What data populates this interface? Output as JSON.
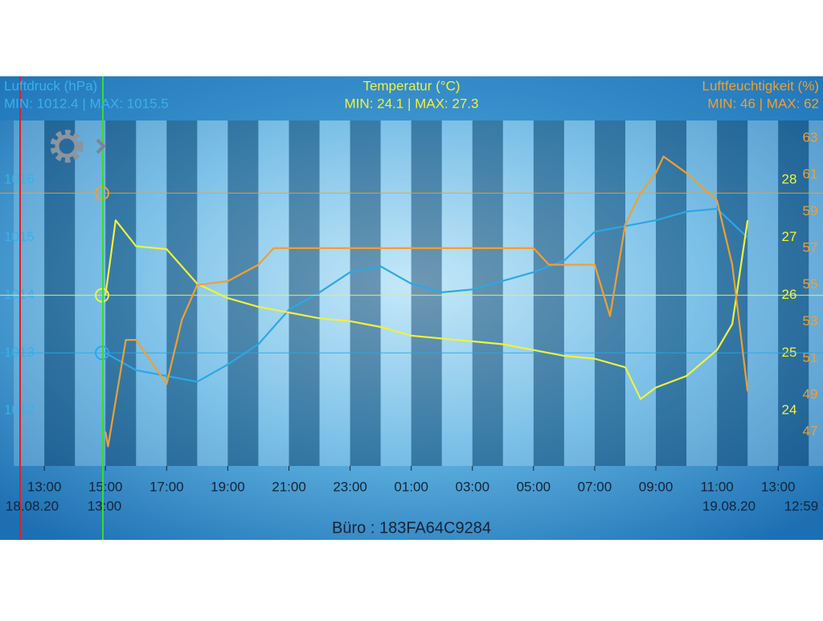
{
  "chart_data": {
    "type": "line",
    "y_label": "Luftdruck (hPa)",
    "y_stats": "MIN: 1012.4 | MAX: 1015.5",
    "y2_label": "Temperatur (°C)",
    "y2_stats": "MIN: 24.1 | MAX: 27.3",
    "y3_label": "Luftfeuchtigkeit (%)",
    "y3_stats": "MIN: 46 | MAX: 62",
    "footer": "Büro : 183FA64C9284",
    "start_date_label": "18.08.20",
    "cursor_time_label": "13:00",
    "end_date_label": "19.08.20",
    "end_time_label": "12:59",
    "xlim": [
      "18.08.20 11:33",
      "19.08.20 14:28"
    ],
    "xticks": [
      {
        "value": "18.08.20 13:00",
        "label": "13:00"
      },
      {
        "value": "18.08.20 15:00",
        "label": "15:00"
      },
      {
        "value": "18.08.20 17:00",
        "label": "17:00"
      },
      {
        "value": "18.08.20 19:00",
        "label": "19:00"
      },
      {
        "value": "18.08.20 21:00",
        "label": "21:00"
      },
      {
        "value": "18.08.20 23:00",
        "label": "23:00"
      },
      {
        "value": "19.08.20 01:00",
        "label": "01:00"
      },
      {
        "value": "19.08.20 03:00",
        "label": "03:00"
      },
      {
        "value": "19.08.20 05:00",
        "label": "05:00"
      },
      {
        "value": "19.08.20 07:00",
        "label": "07:00"
      },
      {
        "value": "19.08.20 09:00",
        "label": "09:00"
      },
      {
        "value": "19.08.20 11:00",
        "label": "11:00"
      },
      {
        "value": "19.08.20 13:00",
        "label": "13:00"
      }
    ],
    "ylim": [
      1011.04,
      1017.03
    ],
    "yticks": [
      1012,
      1013,
      1014,
      1015,
      1016
    ],
    "y2lim": [
      23.04,
      29.03
    ],
    "y2ticks": [
      24,
      25,
      26,
      27,
      28
    ],
    "y3lim": [
      45.13,
      63.96
    ],
    "y3ticks": [
      47,
      49,
      51,
      53,
      55,
      57,
      59,
      61,
      63
    ],
    "series": [
      {
        "name": "Luftdruck (hPa)",
        "axis": "y",
        "color": "#2aa8e6",
        "cursor": 1013,
        "x": [
          "18.08.20 15:00",
          "18.08.20 16:00",
          "18.08.20 17:00",
          "18.08.20 18:00",
          "18.08.20 19:00",
          "18.08.20 20:00",
          "18.08.20 21:00",
          "18.08.20 22:00",
          "18.08.20 23:00",
          "19.08.20 00:00",
          "19.08.20 01:00",
          "19.08.20 02:00",
          "19.08.20 03:00",
          "19.08.20 04:00",
          "19.08.20 05:00",
          "19.08.20 06:00",
          "19.08.20 07:00",
          "19.08.20 08:00",
          "19.08.20 09:00",
          "19.08.20 10:00",
          "19.08.20 11:00",
          "19.08.20 12:00"
        ],
        "values": [
          1013.0,
          1012.7,
          1012.6,
          1012.5,
          1012.8,
          1013.15,
          1013.75,
          1014.05,
          1014.4,
          1014.5,
          1014.2,
          1014.05,
          1014.1,
          1014.25,
          1014.4,
          1014.6,
          1015.1,
          1015.2,
          1015.3,
          1015.45,
          1015.5,
          1015.0
        ]
      },
      {
        "name": "Temperatur (°C)",
        "axis": "y2",
        "color": "#f0f23a",
        "cursor": 26,
        "x": [
          "18.08.20 15:00",
          "18.08.20 15:20",
          "18.08.20 16:00",
          "18.08.20 17:00",
          "18.08.20 18:00",
          "18.08.20 19:00",
          "18.08.20 20:00",
          "18.08.20 21:00",
          "18.08.20 22:00",
          "18.08.20 23:00",
          "19.08.20 00:00",
          "19.08.20 01:00",
          "19.08.20 02:00",
          "19.08.20 03:00",
          "19.08.20 04:00",
          "19.08.20 05:00",
          "19.08.20 06:00",
          "19.08.20 07:00",
          "19.08.20 08:00",
          "19.08.20 08:30",
          "19.08.20 09:00",
          "19.08.20 10:00",
          "19.08.20 11:00",
          "19.08.20 11:30",
          "19.08.20 12:00"
        ],
        "values": [
          26.0,
          27.3,
          26.85,
          26.8,
          26.2,
          25.95,
          25.8,
          25.7,
          25.6,
          25.55,
          25.45,
          25.3,
          25.25,
          25.2,
          25.15,
          25.05,
          24.95,
          24.9,
          24.75,
          24.2,
          24.4,
          24.6,
          25.05,
          25.5,
          27.3
        ]
      },
      {
        "name": "Luftfeuchtigkeit (%)",
        "axis": "y3",
        "color": "#f0a030",
        "cursor": 60,
        "x": [
          "18.08.20 15:00",
          "18.08.20 15:05",
          "18.08.20 15:40",
          "18.08.20 16:00",
          "18.08.20 17:00",
          "18.08.20 17:30",
          "18.08.20 18:00",
          "18.08.20 19:00",
          "18.08.20 20:00",
          "18.08.20 20:30",
          "19.08.20 05:00",
          "19.08.20 05:30",
          "19.08.20 07:00",
          "19.08.20 07:30",
          "19.08.20 08:00",
          "19.08.20 08:30",
          "19.08.20 09:00",
          "19.08.20 09:15",
          "19.08.20 10:00",
          "19.08.20 11:00",
          "19.08.20 11:30",
          "19.08.20 12:00"
        ],
        "values": [
          47.0,
          46.2,
          52.0,
          52.0,
          49.6,
          53.1,
          55.0,
          55.2,
          56.1,
          57.0,
          57.0,
          56.1,
          56.1,
          53.3,
          58.3,
          60.0,
          61.1,
          62.0,
          61.1,
          59.6,
          56.1,
          49.2
        ]
      }
    ]
  }
}
